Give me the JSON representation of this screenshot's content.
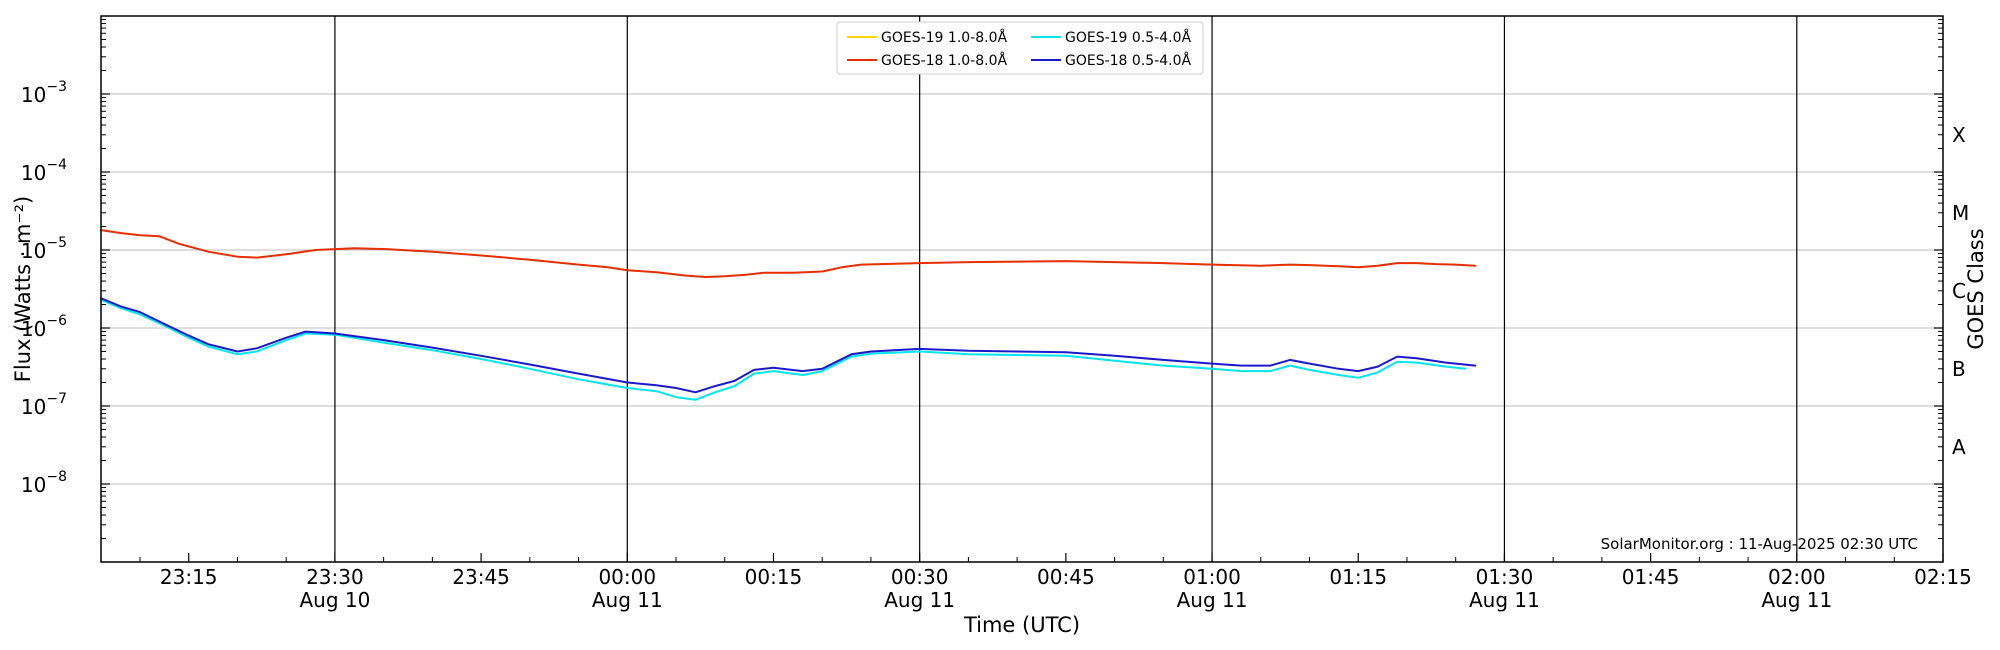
{
  "chart_data": {
    "type": "line",
    "xlabel": "Time (UTC)",
    "ylabel": "Flux (Watts · m⁻²)",
    "right_label": "GOES Class",
    "credit": "SolarMonitor.org : 11-Aug-2025 02:30 UTC",
    "y_scale": "log",
    "ylim": [
      1e-09,
      0.01
    ],
    "xlim": [
      "23:06",
      "02:15"
    ],
    "grid": "horizontal at decades, vertical lines every 30 minutes",
    "legend_position": "top-center",
    "y_ticks": [
      {
        "value": 1e-08,
        "base": "10",
        "exp": "−8"
      },
      {
        "value": 1e-07,
        "base": "10",
        "exp": "−7"
      },
      {
        "value": 1e-06,
        "base": "10",
        "exp": "−6"
      },
      {
        "value": 1e-05,
        "base": "10",
        "exp": "−5"
      },
      {
        "value": 0.0001,
        "base": "10",
        "exp": "−4"
      },
      {
        "value": 0.001,
        "base": "10",
        "exp": "−3"
      }
    ],
    "x_ticks": [
      {
        "time": "23:15",
        "label": "23:15",
        "date": ""
      },
      {
        "time": "23:30",
        "label": "23:30",
        "date": "Aug 10"
      },
      {
        "time": "23:45",
        "label": "23:45",
        "date": ""
      },
      {
        "time": "00:00",
        "label": "00:00",
        "date": "Aug 11"
      },
      {
        "time": "00:15",
        "label": "00:15",
        "date": ""
      },
      {
        "time": "00:30",
        "label": "00:30",
        "date": "Aug 11"
      },
      {
        "time": "00:45",
        "label": "00:45",
        "date": ""
      },
      {
        "time": "01:00",
        "label": "01:00",
        "date": "Aug 11"
      },
      {
        "time": "01:15",
        "label": "01:15",
        "date": ""
      },
      {
        "time": "01:30",
        "label": "01:30",
        "date": "Aug 11"
      },
      {
        "time": "01:45",
        "label": "01:45",
        "date": ""
      },
      {
        "time": "02:00",
        "label": "02:00",
        "date": "Aug 11"
      },
      {
        "time": "02:15",
        "label": "02:15",
        "date": ""
      }
    ],
    "goes_classes": [
      {
        "label": "A",
        "value": 3e-08
      },
      {
        "label": "B",
        "value": 3e-07
      },
      {
        "label": "C",
        "value": 3e-06
      },
      {
        "label": "M",
        "value": 3e-05
      },
      {
        "label": "X",
        "value": 0.0003
      }
    ],
    "series": [
      {
        "name": "GOES-19 1.0-8.0Å",
        "color": "#ffd700",
        "points": []
      },
      {
        "name": "GOES-18 1.0-8.0Å",
        "color": "#e62e00",
        "points": [
          [
            "23:06",
            1.8e-05
          ],
          [
            "23:08",
            1.65e-05
          ],
          [
            "23:10",
            1.55e-05
          ],
          [
            "23:12",
            1.5e-05
          ],
          [
            "23:14",
            1.2e-05
          ],
          [
            "23:17",
            9.5e-06
          ],
          [
            "23:20",
            8.2e-06
          ],
          [
            "23:22",
            8e-06
          ],
          [
            "23:25",
            8.8e-06
          ],
          [
            "23:28",
            1e-05
          ],
          [
            "23:32",
            1.05e-05
          ],
          [
            "23:35",
            1.03e-05
          ],
          [
            "23:40",
            9.5e-06
          ],
          [
            "23:45",
            8.5e-06
          ],
          [
            "23:50",
            7.5e-06
          ],
          [
            "23:55",
            6.5e-06
          ],
          [
            "23:58",
            6e-06
          ],
          [
            "00:00",
            5.5e-06
          ],
          [
            "00:03",
            5.2e-06
          ],
          [
            "00:06",
            4.7e-06
          ],
          [
            "00:08",
            4.5e-06
          ],
          [
            "00:10",
            4.6e-06
          ],
          [
            "00:12",
            4.8e-06
          ],
          [
            "00:14",
            5.1e-06
          ],
          [
            "00:17",
            5.1e-06
          ],
          [
            "00:20",
            5.3e-06
          ],
          [
            "00:22",
            6e-06
          ],
          [
            "00:24",
            6.5e-06
          ],
          [
            "00:30",
            6.8e-06
          ],
          [
            "00:35",
            7e-06
          ],
          [
            "00:40",
            7.1e-06
          ],
          [
            "00:45",
            7.2e-06
          ],
          [
            "00:50",
            7e-06
          ],
          [
            "00:55",
            6.8e-06
          ],
          [
            "01:00",
            6.5e-06
          ],
          [
            "01:05",
            6.3e-06
          ],
          [
            "01:08",
            6.5e-06
          ],
          [
            "01:10",
            6.4e-06
          ],
          [
            "01:13",
            6.2e-06
          ],
          [
            "01:15",
            6e-06
          ],
          [
            "01:17",
            6.3e-06
          ],
          [
            "01:19",
            6.8e-06
          ],
          [
            "01:21",
            6.8e-06
          ],
          [
            "01:23",
            6.6e-06
          ],
          [
            "01:25",
            6.5e-06
          ],
          [
            "01:27",
            6.3e-06
          ]
        ]
      },
      {
        "name": "GOES-19 0.5-4.0Å",
        "color": "#00e5ee",
        "points": [
          [
            "23:06",
            2.3e-06
          ],
          [
            "23:08",
            1.8e-06
          ],
          [
            "23:10",
            1.5e-06
          ],
          [
            "23:13",
            1e-06
          ],
          [
            "23:15",
            7.5e-07
          ],
          [
            "23:17",
            5.8e-07
          ],
          [
            "23:20",
            4.6e-07
          ],
          [
            "23:22",
            5e-07
          ],
          [
            "23:25",
            7e-07
          ],
          [
            "23:27",
            8.5e-07
          ],
          [
            "23:30",
            8.2e-07
          ],
          [
            "23:35",
            6.5e-07
          ],
          [
            "23:40",
            5.2e-07
          ],
          [
            "23:45",
            4e-07
          ],
          [
            "23:50",
            3e-07
          ],
          [
            "23:55",
            2.2e-07
          ],
          [
            "00:00",
            1.7e-07
          ],
          [
            "00:03",
            1.55e-07
          ],
          [
            "00:05",
            1.3e-07
          ],
          [
            "00:07",
            1.2e-07
          ],
          [
            "00:09",
            1.5e-07
          ],
          [
            "00:11",
            1.8e-07
          ],
          [
            "00:13",
            2.6e-07
          ],
          [
            "00:15",
            2.8e-07
          ],
          [
            "00:18",
            2.5e-07
          ],
          [
            "00:20",
            2.8e-07
          ],
          [
            "00:23",
            4.3e-07
          ],
          [
            "00:25",
            4.7e-07
          ],
          [
            "00:30",
            5e-07
          ],
          [
            "00:35",
            4.6e-07
          ],
          [
            "00:40",
            4.5e-07
          ],
          [
            "00:45",
            4.4e-07
          ],
          [
            "00:50",
            3.8e-07
          ],
          [
            "00:55",
            3.3e-07
          ],
          [
            "01:00",
            3e-07
          ],
          [
            "01:03",
            2.8e-07
          ],
          [
            "01:06",
            2.8e-07
          ],
          [
            "01:08",
            3.3e-07
          ],
          [
            "01:10",
            2.9e-07
          ],
          [
            "01:13",
            2.5e-07
          ],
          [
            "01:15",
            2.3e-07
          ],
          [
            "01:17",
            2.7e-07
          ],
          [
            "01:19",
            3.7e-07
          ],
          [
            "01:21",
            3.6e-07
          ],
          [
            "01:24",
            3.2e-07
          ],
          [
            "01:26",
            3e-07
          ]
        ]
      },
      {
        "name": "GOES-18 0.5-4.0Å",
        "color": "#1a1acc",
        "points": [
          [
            "23:06",
            2.4e-06
          ],
          [
            "23:08",
            1.9e-06
          ],
          [
            "23:10",
            1.6e-06
          ],
          [
            "23:13",
            1.05e-06
          ],
          [
            "23:15",
            8e-07
          ],
          [
            "23:17",
            6.2e-07
          ],
          [
            "23:20",
            5e-07
          ],
          [
            "23:22",
            5.5e-07
          ],
          [
            "23:25",
            7.5e-07
          ],
          [
            "23:27",
            9e-07
          ],
          [
            "23:30",
            8.5e-07
          ],
          [
            "23:35",
            7e-07
          ],
          [
            "23:40",
            5.6e-07
          ],
          [
            "23:45",
            4.4e-07
          ],
          [
            "23:50",
            3.4e-07
          ],
          [
            "23:55",
            2.6e-07
          ],
          [
            "00:00",
            2e-07
          ],
          [
            "00:03",
            1.85e-07
          ],
          [
            "00:05",
            1.7e-07
          ],
          [
            "00:07",
            1.5e-07
          ],
          [
            "00:09",
            1.8e-07
          ],
          [
            "00:11",
            2.1e-07
          ],
          [
            "00:13",
            2.9e-07
          ],
          [
            "00:15",
            3.1e-07
          ],
          [
            "00:18",
            2.8e-07
          ],
          [
            "00:20",
            3e-07
          ],
          [
            "00:23",
            4.6e-07
          ],
          [
            "00:25",
            5e-07
          ],
          [
            "00:30",
            5.4e-07
          ],
          [
            "00:35",
            5.1e-07
          ],
          [
            "00:40",
            5e-07
          ],
          [
            "00:45",
            4.9e-07
          ],
          [
            "00:50",
            4.4e-07
          ],
          [
            "00:55",
            3.9e-07
          ],
          [
            "01:00",
            3.5e-07
          ],
          [
            "01:03",
            3.3e-07
          ],
          [
            "01:06",
            3.3e-07
          ],
          [
            "01:08",
            3.9e-07
          ],
          [
            "01:10",
            3.5e-07
          ],
          [
            "01:13",
            3e-07
          ],
          [
            "01:15",
            2.8e-07
          ],
          [
            "01:17",
            3.2e-07
          ],
          [
            "01:19",
            4.3e-07
          ],
          [
            "01:21",
            4.1e-07
          ],
          [
            "01:24",
            3.6e-07
          ],
          [
            "01:27",
            3.3e-07
          ]
        ]
      }
    ]
  }
}
